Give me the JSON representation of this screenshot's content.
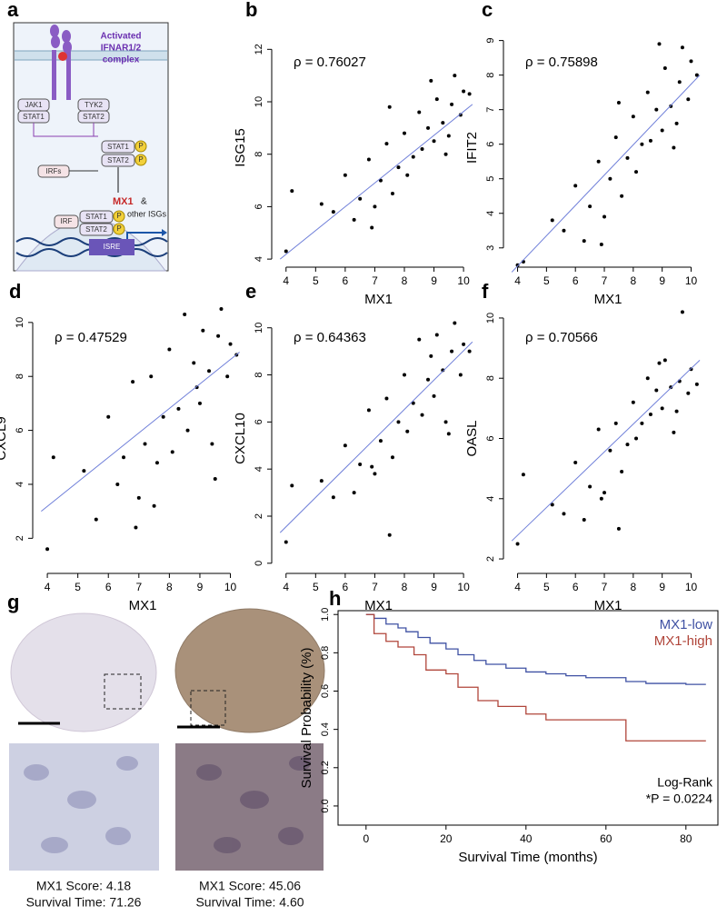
{
  "diagram": {
    "panel": "a",
    "complex": [
      "Activated",
      "IFNAR1/2",
      "complex"
    ],
    "jak1": "JAK1",
    "stat1_left": "STAT1",
    "tyk2": "TYK2",
    "stat2_right": "STAT2",
    "stat1_mid": "STAT1",
    "stat2_mid": "STAT2",
    "phospho": "P",
    "irfs": "IRFs",
    "irf": "IRF",
    "stat1_nuc": "STAT1",
    "stat2_nuc": "STAT2",
    "gene": "MX1",
    "gene_rest": "&",
    "other": "other ISGs",
    "isre": "ISRE"
  },
  "images": {
    "panel": "g",
    "left": [
      "MX1 Score: 4.18",
      "Survival Time: 71.26"
    ],
    "right": [
      "MX1 Score: 45.06",
      "Survival Time: 4.60"
    ]
  },
  "chart_data": [
    {
      "type": "scatter",
      "panel": "b",
      "x_label": "MX1",
      "y_label": "ISG15",
      "annotation": "ρ = 0.76027",
      "color": "#000000",
      "xlim": [
        3.7,
        10.55
      ],
      "ylim": [
        3.9,
        12.6
      ],
      "xticks": [
        4,
        5,
        6,
        7,
        8,
        9,
        10
      ],
      "yticks": [
        4,
        6,
        8,
        10,
        12
      ],
      "x": [
        4.0,
        4.2,
        5.2,
        5.6,
        6.0,
        6.3,
        6.5,
        6.8,
        7.0,
        7.2,
        7.4,
        7.6,
        7.8,
        8.0,
        8.1,
        8.3,
        8.5,
        8.6,
        8.8,
        9.0,
        9.1,
        9.3,
        9.4,
        9.6,
        9.7,
        9.9,
        10.0,
        10.2,
        7.5,
        8.9,
        9.5,
        6.9
      ],
      "y": [
        4.3,
        6.6,
        6.1,
        5.8,
        7.2,
        5.5,
        6.3,
        7.8,
        6.0,
        7.0,
        8.4,
        6.5,
        7.5,
        8.8,
        7.2,
        7.9,
        9.6,
        8.2,
        9.0,
        8.5,
        10.1,
        9.2,
        8.0,
        9.9,
        11.0,
        9.5,
        10.4,
        10.3,
        9.8,
        10.8,
        8.7,
        5.2
      ],
      "trend_line": {
        "color": "#6f7fd9",
        "x": [
          3.8,
          10.3
        ],
        "y": [
          4.0,
          9.9
        ]
      }
    },
    {
      "type": "scatter",
      "panel": "c",
      "x_label": "MX1",
      "y_label": "IFIT2",
      "annotation": "ρ = 0.75898",
      "color": "#000000",
      "xlim": [
        3.7,
        10.55
      ],
      "ylim": [
        2.6,
        9.2
      ],
      "xticks": [
        4,
        5,
        6,
        7,
        8,
        9,
        10
      ],
      "yticks": [
        3,
        4,
        5,
        6,
        7,
        8,
        9
      ],
      "x": [
        4.0,
        4.2,
        5.2,
        5.6,
        6.0,
        6.3,
        6.5,
        6.8,
        7.0,
        7.2,
        7.4,
        7.6,
        7.8,
        8.0,
        8.1,
        8.3,
        8.5,
        8.6,
        8.8,
        9.0,
        9.1,
        9.3,
        9.4,
        9.6,
        9.7,
        9.9,
        10.0,
        10.2,
        7.5,
        8.9,
        9.5,
        6.9
      ],
      "y": [
        2.5,
        2.6,
        3.8,
        3.5,
        4.8,
        3.2,
        4.2,
        5.5,
        3.9,
        5.0,
        6.2,
        4.5,
        5.6,
        6.8,
        5.2,
        6.0,
        7.5,
        6.1,
        7.0,
        6.4,
        8.2,
        7.1,
        5.9,
        7.8,
        8.8,
        7.3,
        8.4,
        8.0,
        7.2,
        8.9,
        6.6,
        3.1
      ],
      "trend_line": {
        "color": "#6f7fd9",
        "x": [
          3.8,
          10.3
        ],
        "y": [
          2.3,
          8.0
        ]
      }
    },
    {
      "type": "scatter",
      "panel": "d",
      "x_label": "MX1",
      "y_label": "CXCL9",
      "annotation": "ρ = 0.47529",
      "color": "#000000",
      "xlim": [
        3.7,
        10.55
      ],
      "ylim": [
        0.9,
        10.5
      ],
      "xticks": [
        4,
        5,
        6,
        7,
        8,
        9,
        10
      ],
      "yticks": [
        2,
        4,
        6,
        8,
        10
      ],
      "x": [
        4.0,
        4.2,
        5.2,
        5.6,
        6.0,
        6.3,
        6.5,
        6.8,
        7.0,
        7.2,
        7.4,
        7.6,
        7.8,
        8.0,
        8.1,
        8.3,
        8.5,
        8.6,
        8.8,
        9.0,
        9.1,
        9.3,
        9.4,
        9.6,
        9.7,
        9.9,
        10.0,
        10.2,
        7.5,
        8.9,
        9.5,
        6.9
      ],
      "y": [
        1.6,
        5.0,
        4.5,
        2.7,
        6.5,
        4.0,
        5.0,
        7.8,
        3.5,
        5.5,
        8.0,
        4.8,
        6.5,
        9.0,
        5.2,
        6.8,
        10.3,
        6.0,
        8.5,
        7.0,
        9.7,
        8.2,
        5.5,
        9.5,
        10.5,
        8.0,
        9.2,
        8.8,
        3.2,
        7.6,
        4.2,
        2.4
      ],
      "trend_line": {
        "color": "#6f7fd9",
        "x": [
          3.8,
          10.3
        ],
        "y": [
          3.0,
          8.9
        ]
      }
    },
    {
      "type": "scatter",
      "panel": "e",
      "x_label": "MX1",
      "y_label": "CXCL10",
      "annotation": "ρ = 0.64363",
      "color": "#000000",
      "xlim": [
        3.7,
        10.55
      ],
      "ylim": [
        -0.2,
        10.8
      ],
      "xticks": [
        4,
        5,
        6,
        7,
        8,
        9,
        10
      ],
      "yticks": [
        0,
        2,
        4,
        6,
        8,
        10
      ],
      "x": [
        4.0,
        4.2,
        5.2,
        5.6,
        6.0,
        6.3,
        6.5,
        6.8,
        7.0,
        7.2,
        7.4,
        7.6,
        7.8,
        8.0,
        8.1,
        8.3,
        8.5,
        8.6,
        8.8,
        9.0,
        9.1,
        9.3,
        9.4,
        9.6,
        9.7,
        9.9,
        10.0,
        10.2,
        7.5,
        8.9,
        9.5,
        6.9
      ],
      "y": [
        0.9,
        3.3,
        3.5,
        2.8,
        5.0,
        3.0,
        4.2,
        6.5,
        3.8,
        5.2,
        7.0,
        4.5,
        6.0,
        8.0,
        5.6,
        6.8,
        9.5,
        6.3,
        7.8,
        7.1,
        9.7,
        8.2,
        6.0,
        9.0,
        10.2,
        8.0,
        9.3,
        9.0,
        1.2,
        8.8,
        5.5,
        4.1
      ],
      "trend_line": {
        "color": "#6f7fd9",
        "x": [
          3.8,
          10.3
        ],
        "y": [
          1.3,
          9.4
        ]
      }
    },
    {
      "type": "scatter",
      "panel": "f",
      "x_label": "MX1",
      "y_label": "OASL",
      "annotation": "ρ = 0.70566",
      "color": "#000000",
      "xlim": [
        3.7,
        10.55
      ],
      "ylim": [
        1.7,
        10.3
      ],
      "xticks": [
        4,
        5,
        6,
        7,
        8,
        9,
        10
      ],
      "yticks": [
        2,
        4,
        6,
        8,
        10
      ],
      "x": [
        4.0,
        4.2,
        5.2,
        5.6,
        6.0,
        6.3,
        6.5,
        6.8,
        7.0,
        7.2,
        7.4,
        7.6,
        7.8,
        8.0,
        8.1,
        8.3,
        8.5,
        8.6,
        8.8,
        9.0,
        9.1,
        9.3,
        9.4,
        9.6,
        9.7,
        9.9,
        10.0,
        10.2,
        7.5,
        8.9,
        9.5,
        6.9
      ],
      "y": [
        2.5,
        4.8,
        3.8,
        3.5,
        5.2,
        3.3,
        4.4,
        6.3,
        4.2,
        5.6,
        6.5,
        4.9,
        5.8,
        7.2,
        6.0,
        6.5,
        8.0,
        6.8,
        7.6,
        7.0,
        8.6,
        7.7,
        6.2,
        7.9,
        10.2,
        7.5,
        8.3,
        7.8,
        3.0,
        8.5,
        6.9,
        4.0
      ],
      "trend_line": {
        "color": "#6f7fd9",
        "x": [
          3.8,
          10.3
        ],
        "y": [
          2.6,
          8.6
        ]
      }
    },
    {
      "type": "line",
      "step": true,
      "panel": "h",
      "x_label": "Survival Time (months)",
      "y_label": "Survival Probability (%)",
      "legend": "top-right",
      "annotations": [
        "Log-Rank",
        "*P = 0.0224"
      ],
      "xlim": [
        -7,
        88
      ],
      "ylim": [
        -0.1,
        1.02
      ],
      "xticks": [
        0,
        20,
        40,
        60,
        80
      ],
      "yticks": [
        {
          "value": 0,
          "label": "0.0"
        },
        0.2,
        0.4,
        0.6,
        0.8,
        {
          "value": 1,
          "label": "1.0"
        }
      ],
      "series": [
        {
          "name": "MX1-low",
          "color": "#3f51a3",
          "x": [
            0,
            2,
            5,
            8,
            10,
            13,
            16,
            20,
            23,
            27,
            30,
            35,
            40,
            45,
            50,
            55,
            60,
            65,
            70,
            75,
            80,
            85
          ],
          "values": [
            1,
            0.98,
            0.95,
            0.93,
            0.91,
            0.88,
            0.85,
            0.82,
            0.79,
            0.76,
            0.74,
            0.72,
            0.7,
            0.69,
            0.68,
            0.67,
            0.67,
            0.65,
            0.64,
            0.64,
            0.635,
            0.635
          ]
        },
        {
          "name": "MX1-high",
          "color": "#b0453a",
          "x": [
            0,
            2,
            5,
            8,
            12,
            15,
            20,
            23,
            28,
            33,
            40,
            45,
            65,
            85
          ],
          "values": [
            1,
            0.9,
            0.86,
            0.83,
            0.79,
            0.71,
            0.69,
            0.62,
            0.55,
            0.52,
            0.48,
            0.45,
            0.34,
            0.34
          ]
        }
      ]
    }
  ]
}
